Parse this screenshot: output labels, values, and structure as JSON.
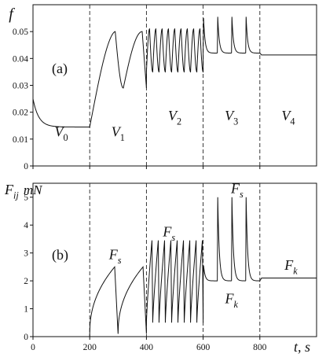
{
  "chart_data": [
    {
      "panel": "a",
      "type": "line",
      "panel_label": "(a)",
      "ylabel": "f",
      "xlim": [
        0,
        1000
      ],
      "ylim": [
        0,
        0.06
      ],
      "yticks": [
        0,
        0.01,
        0.02,
        0.03,
        0.04,
        0.05
      ],
      "ytick_labels": [
        "0",
        "0.01",
        "0.02",
        "0.03",
        "0.04",
        "0.05"
      ],
      "xtick_labels_shown": false,
      "grid": false,
      "vlines": [
        {
          "x": 200,
          "style": "dashed"
        },
        {
          "x": 400,
          "style": "dashed"
        },
        {
          "x": 600,
          "style": "dashed"
        },
        {
          "x": 800,
          "style": "dashed"
        }
      ],
      "region_labels": [
        {
          "base": "V",
          "sub": "0",
          "x": 100,
          "y": 0.011
        },
        {
          "base": "V",
          "sub": "1",
          "x": 300,
          "y": 0.011
        },
        {
          "base": "V",
          "sub": "2",
          "x": 500,
          "y": 0.017
        },
        {
          "base": "V",
          "sub": "3",
          "x": 700,
          "y": 0.017
        },
        {
          "base": "V",
          "sub": "4",
          "x": 900,
          "y": 0.017
        }
      ],
      "series": [
        {
          "segments": [
            {
              "kind": "decay",
              "x0": 0,
              "x1": 200,
              "y_start": 0.025,
              "y_end": 0.0145,
              "tau": 20
            },
            {
              "kind": "rise",
              "x0": 200,
              "x1": 290,
              "y_start": 0.0145,
              "y_end": 0.05,
              "shape": 1.6
            },
            {
              "kind": "wave",
              "x0": 290,
              "x1": 385,
              "y_low": 0.029,
              "y_high": 0.05,
              "drop_frac": 0.3
            },
            {
              "kind": "drop",
              "x0": 385,
              "x1": 400,
              "y_start": 0.05,
              "y_end": 0.029
            },
            {
              "kind": "oscillation",
              "x0": 400,
              "x1": 600,
              "periods": 9,
              "y_low": 0.035,
              "y_high": 0.051
            },
            {
              "kind": "spikes",
              "x0": 600,
              "x1": 800,
              "peaks": [
                0.055,
                0.0555,
                0.0555,
                0.0555
              ],
              "y_base": 0.042,
              "period": 50
            },
            {
              "kind": "flat",
              "x0": 800,
              "x1": 1000,
              "y": 0.0413,
              "from": 0.042
            }
          ]
        }
      ]
    },
    {
      "panel": "b",
      "type": "line",
      "panel_label": "(b)",
      "ylabel": "F",
      "ylabel_sub": "ij",
      "yunit": "mN",
      "xlabel_base": "t",
      "xlabel_unit": ", s",
      "xlim": [
        0,
        1000
      ],
      "ylim": [
        0,
        5.5
      ],
      "xticks": [
        0,
        200,
        400,
        600,
        800
      ],
      "xtick_labels": [
        "0",
        "200",
        "400",
        "600",
        "800"
      ],
      "yticks": [
        0,
        1,
        2,
        3,
        4,
        5
      ],
      "ytick_labels": [
        "0",
        "1",
        "2",
        "3",
        "4",
        "5"
      ],
      "grid": false,
      "vlines": [
        {
          "x": 200,
          "style": "dashed"
        },
        {
          "x": 400,
          "style": "dashed"
        },
        {
          "x": 600,
          "style": "dashed"
        },
        {
          "x": 800,
          "style": "dashed"
        }
      ],
      "annotations": [
        {
          "base": "F",
          "sub": "s",
          "x": 290,
          "y": 2.78
        },
        {
          "base": "F",
          "sub": "s",
          "x": 480,
          "y": 3.6
        },
        {
          "base": "F",
          "sub": "s",
          "x": 720,
          "y": 5.15
        },
        {
          "base": "F",
          "sub": "k",
          "x": 700,
          "y": 1.2
        },
        {
          "base": "F",
          "sub": "k",
          "x": 910,
          "y": 2.4
        }
      ],
      "series": [
        {
          "segments": [
            {
              "kind": "flat",
              "x0": 0,
              "x1": 200,
              "y": 0,
              "from": 0
            },
            {
              "kind": "sawtooth",
              "x0": 200,
              "x1": 400,
              "periods": 2,
              "y_low": 0.1,
              "y_high": 2.5,
              "shape": 0.45
            },
            {
              "kind": "sawtooth",
              "x0": 400,
              "x1": 600,
              "periods": 9,
              "y_low": 0.5,
              "y_high": 3.45,
              "shape": 0.8
            },
            {
              "kind": "spikes",
              "x0": 600,
              "x1": 800,
              "peaks": [
                2.55,
                5.0,
                5.0,
                5.0
              ],
              "y_base": 2.0,
              "period": 50
            },
            {
              "kind": "flat",
              "x0": 800,
              "x1": 1000,
              "y": 2.1,
              "from": 2.0
            }
          ]
        }
      ]
    }
  ]
}
